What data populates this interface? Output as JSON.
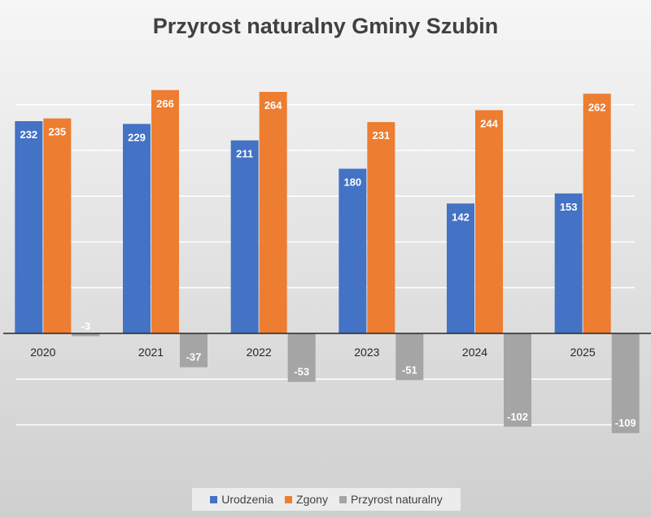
{
  "chart_data": {
    "type": "bar",
    "title": "Przyrost naturalny Gminy Szubin",
    "xlabel": "",
    "ylabel": "",
    "categories": [
      "2020",
      "2021",
      "2022",
      "2023",
      "2024",
      "2025"
    ],
    "series": [
      {
        "name": "Urodzenia",
        "color": "#4472C4",
        "values": [
          232,
          229,
          211,
          180,
          142,
          153
        ]
      },
      {
        "name": "Zgony",
        "color": "#ED7D31",
        "values": [
          235,
          266,
          264,
          231,
          244,
          262
        ]
      },
      {
        "name": "Przyrost naturalny",
        "color": "#A5A5A5",
        "values": [
          -3,
          -37,
          -53,
          -51,
          -102,
          -109
        ]
      }
    ],
    "ylim": [
      -150,
      300
    ],
    "gridline_step": 50,
    "y_tick_labels_shown": false,
    "data_labels": true,
    "grid": true,
    "legend": "bottom"
  }
}
